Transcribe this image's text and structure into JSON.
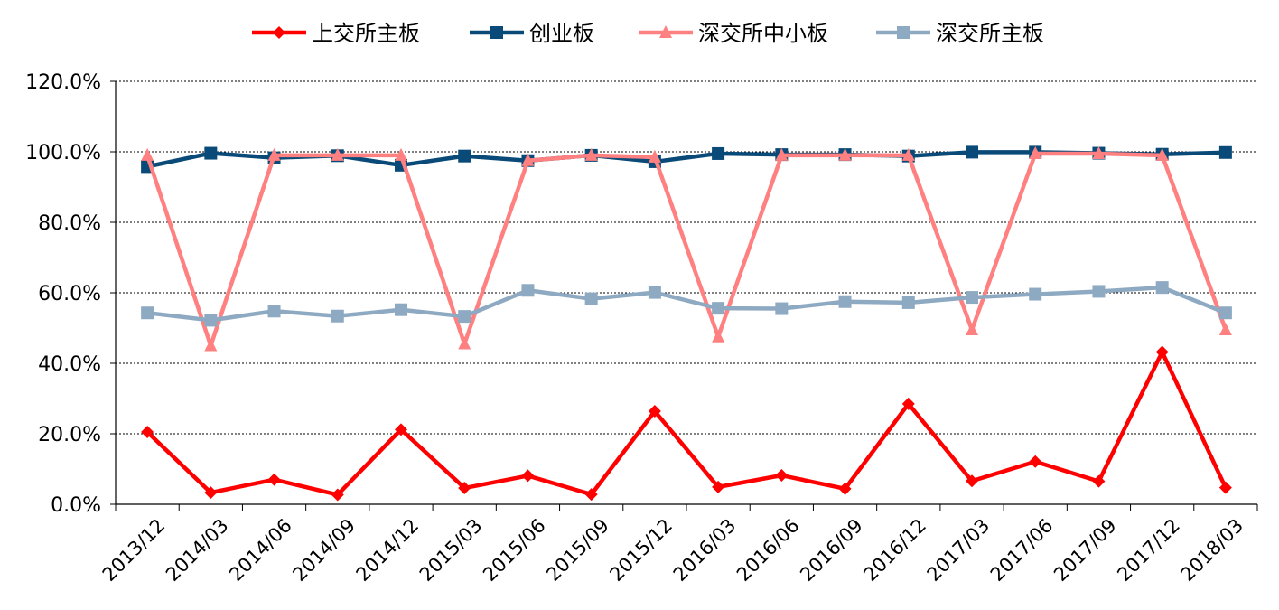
{
  "chart_data": {
    "type": "line",
    "categories": [
      "2013/12",
      "2014/03",
      "2014/06",
      "2014/09",
      "2014/12",
      "2015/03",
      "2015/06",
      "2015/09",
      "2015/12",
      "2016/03",
      "2016/06",
      "2016/09",
      "2016/12",
      "2017/03",
      "2017/06",
      "2017/09",
      "2017/12",
      "2018/03"
    ],
    "ylim": [
      0,
      120
    ],
    "yticks": [
      0,
      20,
      40,
      60,
      80,
      100,
      120
    ],
    "ytick_labels": [
      "0.0%",
      "20.0%",
      "40.0%",
      "60.0%",
      "80.0%",
      "100.0%",
      "120.0%"
    ],
    "grid": true,
    "legend_position": "top",
    "series": [
      {
        "name": "上交所主板",
        "color": "#ff0000",
        "marker": "diamond",
        "values": [
          20.5,
          3.3,
          7.0,
          2.7,
          21.2,
          4.6,
          8.1,
          2.8,
          26.4,
          4.9,
          8.2,
          4.4,
          28.5,
          6.6,
          12.1,
          6.5,
          43.2,
          4.7
        ]
      },
      {
        "name": "创业板",
        "color": "#0a4a78",
        "marker": "square",
        "values": [
          95.8,
          99.6,
          98.3,
          98.9,
          96.2,
          98.8,
          97.5,
          99.0,
          97.2,
          99.5,
          99.2,
          99.2,
          98.8,
          99.9,
          99.9,
          99.6,
          99.3,
          99.8
        ]
      },
      {
        "name": "深交所中小板",
        "color": "#ff8080",
        "marker": "triangle",
        "values": [
          99.0,
          45.0,
          99.0,
          99.0,
          99.0,
          45.5,
          97.5,
          99.0,
          98.5,
          47.5,
          99.0,
          99.0,
          99.0,
          49.5,
          99.5,
          99.5,
          99.0,
          49.5
        ]
      },
      {
        "name": "深交所主板",
        "color": "#8eaac2",
        "marker": "square",
        "values": [
          54.3,
          52.2,
          54.8,
          53.4,
          55.2,
          53.3,
          60.7,
          58.3,
          60.1,
          55.6,
          55.5,
          57.5,
          57.2,
          58.7,
          59.6,
          60.4,
          61.5,
          54.3
        ]
      }
    ]
  }
}
